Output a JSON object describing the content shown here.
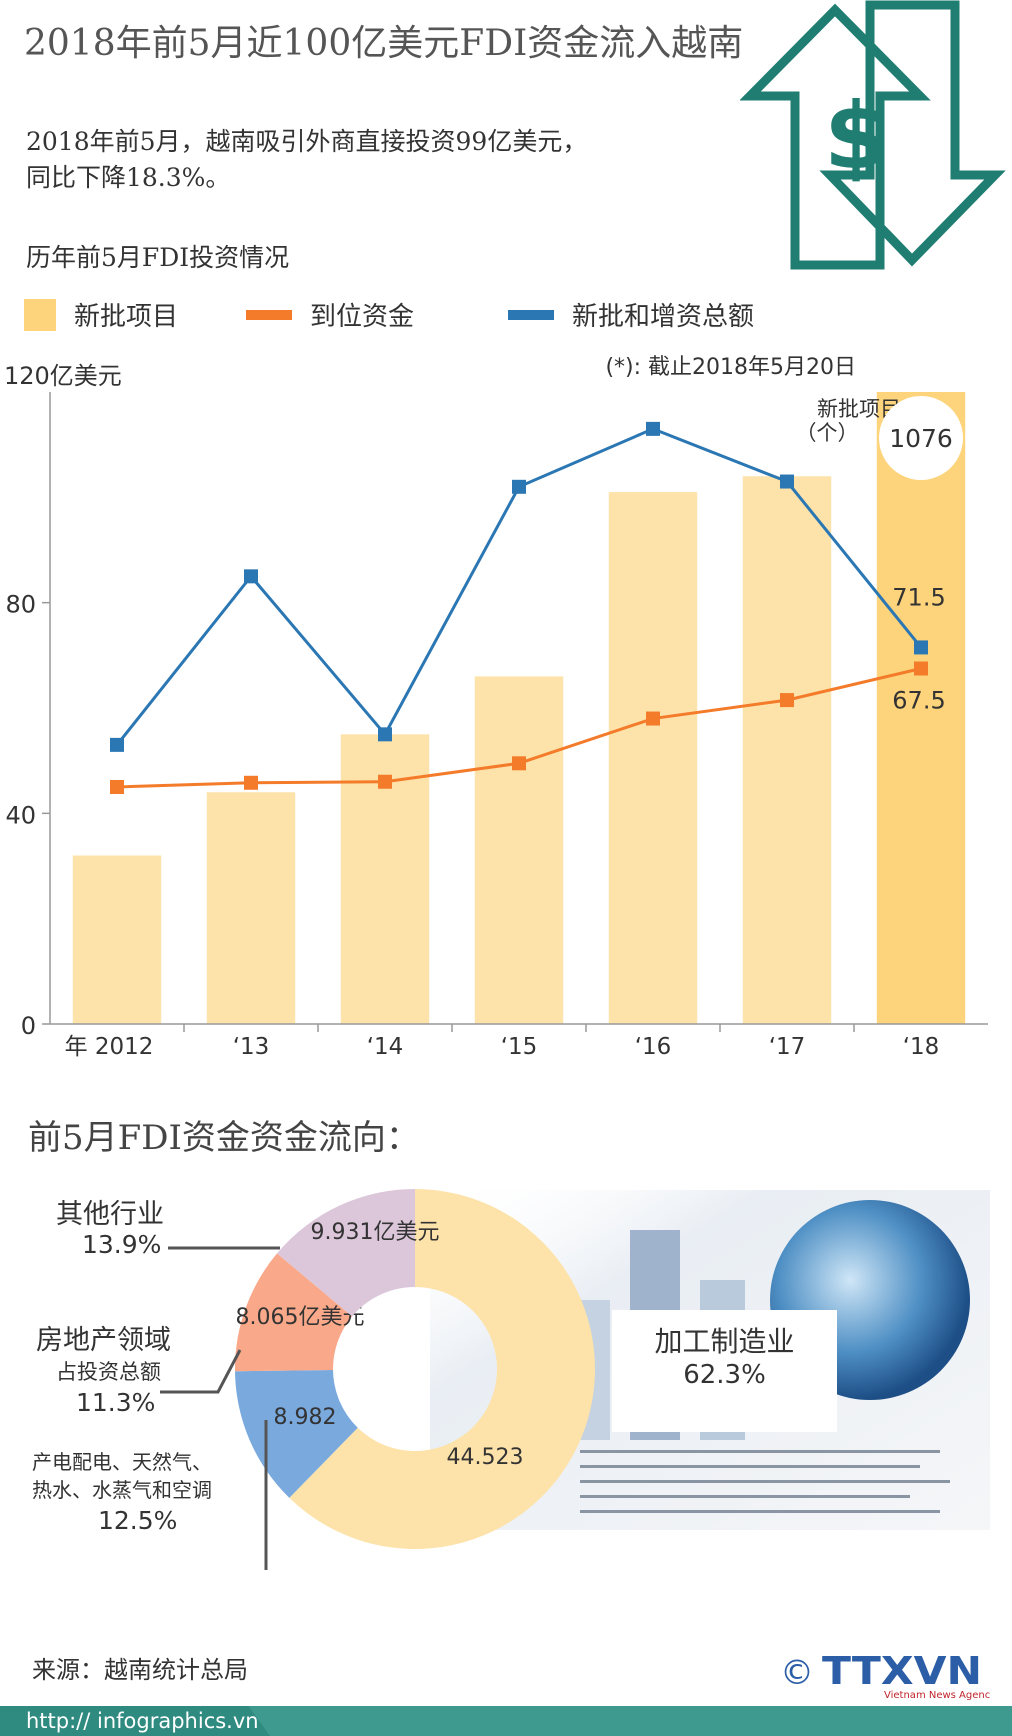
{
  "title": "2018年前5月近100亿美元FDI资金流入越南",
  "subtitle_line1": "2018年前5月，越南吸引外商直接投资99亿美元，",
  "subtitle_line2": "同比下降18.3%。",
  "section1_title": "历年前5月FDI投资情况",
  "legend": {
    "new_projects": "新批项目",
    "disbursed": "到位资金",
    "total": "新批和增资总额"
  },
  "colors": {
    "bar": "#fde3aa",
    "bar_highlight": "#fdd37b",
    "disbursed": "#f47b2a",
    "total": "#2b77b4",
    "teal": "#1f7d72"
  },
  "chart_data": {
    "type": "bar",
    "categories": [
      "年 2012",
      "‘13",
      "‘14",
      "‘15",
      "‘16",
      "‘17",
      "‘18"
    ],
    "ylabel": "120亿美元",
    "ylim": [
      0,
      120
    ],
    "yticks": [
      "0",
      "40",
      "80"
    ],
    "yticks_values": [
      0,
      40,
      80
    ],
    "note": "(*): 截止2018年5月20日",
    "series": [
      {
        "name": "新批项目",
        "type": "bar",
        "values": [
          32,
          44,
          55,
          66,
          101,
          104,
          120
        ]
      },
      {
        "name": "到位资金",
        "type": "line",
        "values": [
          45,
          45.8,
          46,
          49.5,
          58,
          61.5,
          67.5
        ]
      },
      {
        "name": "新批和增资总额",
        "type": "line",
        "values": [
          53,
          85,
          55,
          102,
          113,
          103,
          71.5
        ]
      }
    ],
    "annotations": {
      "highlight_label": "新批项目",
      "highlight_unit": "（个）",
      "highlight_value": "1076",
      "total_2018": "71.5",
      "disbursed_2018": "67.5"
    }
  },
  "section2_title": "前5月FDI资金资金流向：",
  "donut": {
    "segments": [
      {
        "name": "加工制造业",
        "pct": 62.3,
        "value": "44.523",
        "color": "#fde3aa"
      },
      {
        "name": "产电配电、天然气、热水、水蒸气和空调",
        "pct": 12.5,
        "value": "8.982",
        "color": "#7aa9de"
      },
      {
        "name": "房地产领域",
        "pct": 11.3,
        "value": "8.065亿美元",
        "color": "#f9a98a"
      },
      {
        "name": "其他行业",
        "pct": 13.9,
        "value": "9.931亿美元",
        "color": "#dcc7da"
      }
    ],
    "labels": {
      "manufacturing": "加工制造业",
      "manufacturing_pct": "62.3%",
      "other": "其他行业",
      "other_pct": "13.9%",
      "realestate": "房地产领域",
      "realestate_sub": "占投资总额",
      "realestate_pct": "11.3%",
      "power_line1": "产电配电、天然气、",
      "power_line2": "热水、水蒸气和空调",
      "power_pct": "12.5%"
    }
  },
  "source": "来源：越南统计总局",
  "footer_url": "http:// infographics.vn",
  "logo_text": "TTXVN",
  "logo_sub": "Vietnam News Agency",
  "copyright": "©"
}
